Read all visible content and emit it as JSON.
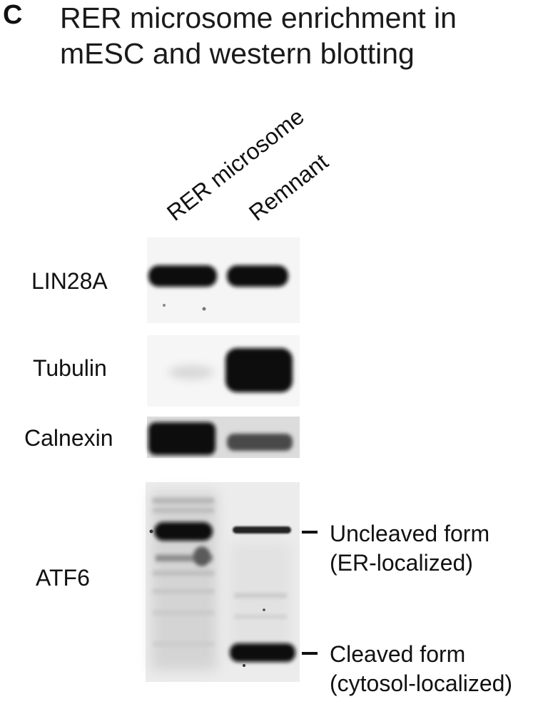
{
  "panel": {
    "letter": "C",
    "title_line1": "RER microsome enrichment in",
    "title_line2": "mESC and western blotting"
  },
  "lanes": [
    "RER microsome",
    "Remnant"
  ],
  "rows": [
    {
      "label": "LIN28A"
    },
    {
      "label": "Tubulin"
    },
    {
      "label": "Calnexin"
    },
    {
      "label": "ATF6"
    }
  ],
  "annotations": [
    {
      "line1": "Uncleaved form",
      "line2": "(ER-localized)"
    },
    {
      "line1": "Cleaved form",
      "line2": "(cytosol-localized)"
    }
  ]
}
